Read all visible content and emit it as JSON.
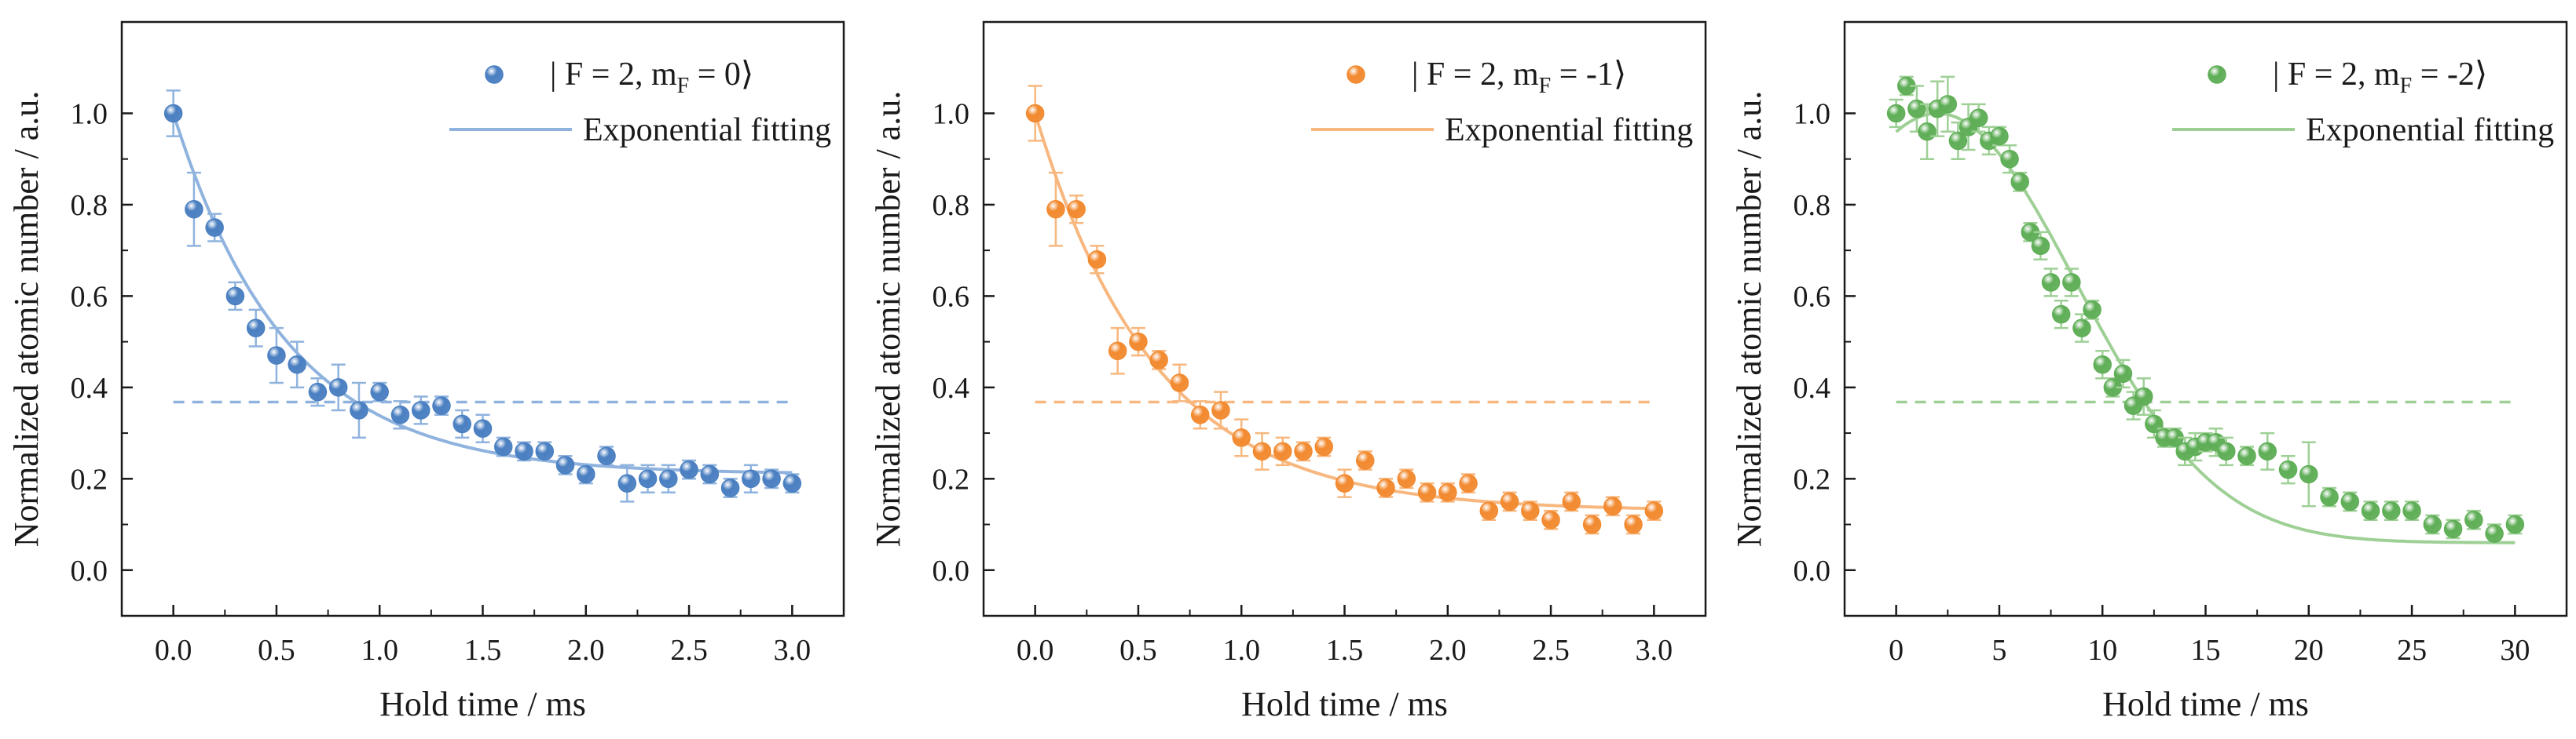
{
  "figure_title": "",
  "chart_data": [
    {
      "type": "scatter",
      "title": "",
      "xlabel": "Hold time / ms",
      "ylabel": "Normalized atomic number / a.u.",
      "xlim": [
        -0.25,
        3.25
      ],
      "ylim": [
        -0.1,
        1.2
      ],
      "xticks": [
        0.0,
        0.5,
        1.0,
        1.5,
        2.0,
        2.5,
        3.0
      ],
      "xtick_labels": [
        "0.0",
        "0.5",
        "1.0",
        "1.5",
        "2.0",
        "2.5",
        "3.0"
      ],
      "yticks": [
        0.0,
        0.2,
        0.4,
        0.6,
        0.8,
        1.0
      ],
      "ytick_labels": [
        "0.0",
        "0.2",
        "0.4",
        "0.6",
        "0.8",
        "1.0"
      ],
      "grid": false,
      "legend_position": "top-right",
      "color": "#4a7fc1",
      "light_color": "#8fb3de",
      "legend": {
        "data_prefix": "| F = 2, m",
        "data_sub": "F",
        "data_suffix": " = 0⟩",
        "fit_label": "Exponential fitting"
      },
      "series": [
        {
          "name": "|F = 2, mF = 0⟩",
          "x": [
            0.0,
            0.1,
            0.2,
            0.3,
            0.4,
            0.5,
            0.6,
            0.7,
            0.8,
            0.9,
            1.0,
            1.1,
            1.2,
            1.3,
            1.4,
            1.5,
            1.6,
            1.7,
            1.8,
            1.9,
            2.0,
            2.1,
            2.2,
            2.3,
            2.4,
            2.5,
            2.6,
            2.7,
            2.8,
            2.9,
            3.0
          ],
          "y": [
            1.0,
            0.79,
            0.75,
            0.6,
            0.53,
            0.47,
            0.45,
            0.39,
            0.4,
            0.35,
            0.39,
            0.34,
            0.35,
            0.36,
            0.32,
            0.31,
            0.27,
            0.26,
            0.26,
            0.23,
            0.21,
            0.25,
            0.19,
            0.2,
            0.2,
            0.22,
            0.21,
            0.18,
            0.2,
            0.2,
            0.19
          ],
          "err": [
            0.05,
            0.08,
            0.03,
            0.03,
            0.04,
            0.06,
            0.05,
            0.03,
            0.05,
            0.06,
            0.02,
            0.03,
            0.03,
            0.02,
            0.03,
            0.03,
            0.02,
            0.02,
            0.02,
            0.02,
            0.02,
            0.02,
            0.04,
            0.03,
            0.03,
            0.02,
            0.02,
            0.02,
            0.03,
            0.02,
            0.02
          ]
        },
        {
          "name": "Exponential fitting",
          "fit": {
            "model": "A*exp(-x/tau)+y0",
            "A": 0.79,
            "tau": 0.55,
            "y0": 0.21
          }
        }
      ],
      "reference_line": {
        "y": 0.368,
        "style": "dashed"
      }
    },
    {
      "type": "scatter",
      "title": "",
      "xlabel": "Hold time / ms",
      "ylabel": "Normalized atomic number / a.u.",
      "xlim": [
        -0.25,
        3.25
      ],
      "ylim": [
        -0.1,
        1.2
      ],
      "xticks": [
        0.0,
        0.5,
        1.0,
        1.5,
        2.0,
        2.5,
        3.0
      ],
      "xtick_labels": [
        "0.0",
        "0.5",
        "1.0",
        "1.5",
        "2.0",
        "2.5",
        "3.0"
      ],
      "yticks": [
        0.0,
        0.2,
        0.4,
        0.6,
        0.8,
        1.0
      ],
      "ytick_labels": [
        "0.0",
        "0.2",
        "0.4",
        "0.6",
        "0.8",
        "1.0"
      ],
      "grid": false,
      "legend_position": "top-right",
      "color": "#f28a30",
      "light_color": "#f7b77e",
      "legend": {
        "data_prefix": "| F = 2, m",
        "data_sub": "F",
        "data_suffix": " = -1⟩",
        "fit_label": "Exponential fitting"
      },
      "series": [
        {
          "name": "|F = 2, mF = -1⟩",
          "x": [
            0.0,
            0.1,
            0.2,
            0.3,
            0.4,
            0.5,
            0.6,
            0.7,
            0.8,
            0.9,
            1.0,
            1.1,
            1.2,
            1.3,
            1.4,
            1.5,
            1.6,
            1.7,
            1.8,
            1.9,
            2.0,
            2.1,
            2.2,
            2.3,
            2.4,
            2.5,
            2.6,
            2.7,
            2.8,
            2.9,
            3.0
          ],
          "y": [
            1.0,
            0.79,
            0.79,
            0.68,
            0.48,
            0.5,
            0.46,
            0.41,
            0.34,
            0.35,
            0.29,
            0.26,
            0.26,
            0.26,
            0.27,
            0.19,
            0.24,
            0.18,
            0.2,
            0.17,
            0.17,
            0.19,
            0.13,
            0.15,
            0.13,
            0.11,
            0.15,
            0.1,
            0.14,
            0.1,
            0.13
          ],
          "err": [
            0.06,
            0.08,
            0.03,
            0.03,
            0.05,
            0.03,
            0.02,
            0.04,
            0.03,
            0.04,
            0.04,
            0.04,
            0.03,
            0.02,
            0.02,
            0.03,
            0.02,
            0.02,
            0.02,
            0.02,
            0.02,
            0.02,
            0.02,
            0.02,
            0.02,
            0.02,
            0.02,
            0.02,
            0.02,
            0.02,
            0.02
          ]
        },
        {
          "name": "Exponential fitting",
          "fit": {
            "model": "A*exp(-x/tau)+y0",
            "A": 0.87,
            "tau": 0.58,
            "y0": 0.13
          }
        }
      ],
      "reference_line": {
        "y": 0.368,
        "style": "dashed"
      }
    },
    {
      "type": "scatter",
      "title": "",
      "xlabel": "Hold time / ms",
      "ylabel": "Normalized atomic number / a.u.",
      "xlim": [
        -2.5,
        32.5
      ],
      "ylim": [
        -0.1,
        1.2
      ],
      "xticks": [
        0,
        5,
        10,
        15,
        20,
        25,
        30
      ],
      "xtick_labels": [
        "0",
        "5",
        "10",
        "15",
        "20",
        "25",
        "30"
      ],
      "yticks": [
        0.0,
        0.2,
        0.4,
        0.6,
        0.8,
        1.0
      ],
      "ytick_labels": [
        "0.0",
        "0.2",
        "0.4",
        "0.6",
        "0.8",
        "1.0"
      ],
      "grid": false,
      "legend_position": "top-right",
      "color": "#5fae57",
      "light_color": "#9ed096",
      "legend": {
        "data_prefix": "| F = 2, m",
        "data_sub": "F",
        "data_suffix": " = -2⟩",
        "fit_label": "Exponential fitting"
      },
      "series": [
        {
          "name": "|F = 2, mF = -2⟩",
          "x": [
            0,
            0.5,
            1,
            1.5,
            2,
            2.5,
            3,
            3.5,
            4,
            4.5,
            5,
            5.5,
            6,
            6.5,
            7,
            7.5,
            8,
            8.5,
            9,
            9.5,
            10,
            10.5,
            11,
            11.5,
            12,
            12.5,
            13,
            13.5,
            14,
            14.5,
            15,
            15.5,
            16,
            17,
            18,
            19,
            20,
            21,
            22,
            23,
            24,
            25,
            26,
            27,
            28,
            29,
            30
          ],
          "y": [
            1.0,
            1.06,
            1.01,
            0.96,
            1.01,
            1.02,
            0.94,
            0.97,
            0.99,
            0.94,
            0.95,
            0.9,
            0.85,
            0.74,
            0.71,
            0.63,
            0.56,
            0.63,
            0.53,
            0.57,
            0.45,
            0.4,
            0.43,
            0.36,
            0.38,
            0.32,
            0.29,
            0.29,
            0.26,
            0.27,
            0.28,
            0.28,
            0.26,
            0.25,
            0.26,
            0.22,
            0.21,
            0.16,
            0.15,
            0.13,
            0.13,
            0.13,
            0.1,
            0.09,
            0.11,
            0.08,
            0.1
          ],
          "err": [
            0.03,
            0.02,
            0.05,
            0.06,
            0.06,
            0.06,
            0.04,
            0.05,
            0.03,
            0.03,
            0.02,
            0.03,
            0.02,
            0.02,
            0.03,
            0.03,
            0.03,
            0.03,
            0.03,
            0.02,
            0.03,
            0.02,
            0.03,
            0.03,
            0.04,
            0.03,
            0.02,
            0.02,
            0.03,
            0.03,
            0.02,
            0.03,
            0.03,
            0.02,
            0.04,
            0.03,
            0.07,
            0.02,
            0.02,
            0.02,
            0.02,
            0.02,
            0.02,
            0.02,
            0.02,
            0.02,
            0.02
          ]
        },
        {
          "name": "Exponential fitting",
          "fit": {
            "model": "y0 + A*exp(-((x-t0)/tau)^2)",
            "A": 0.94,
            "t0": 2.0,
            "tau": 9.5,
            "y0": 0.06
          }
        }
      ],
      "reference_line": {
        "y": 0.368,
        "style": "dashed"
      }
    }
  ]
}
